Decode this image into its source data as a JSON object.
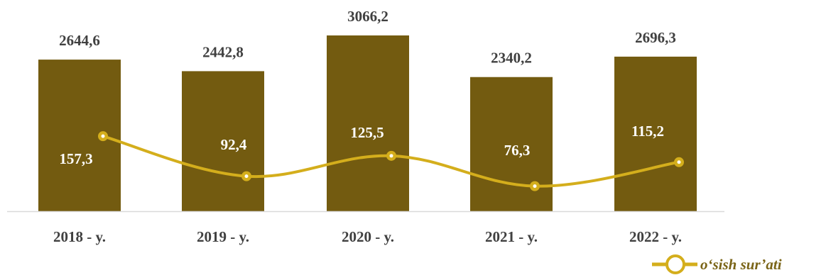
{
  "colors": {
    "bar": "#735b10",
    "line": "#d4ae1c",
    "axis": "#d9d9d9",
    "legend_text": "#7a6417"
  },
  "chart_data": {
    "type": "bar",
    "categories": [
      "2018 - y.",
      "2019 - y.",
      "2020 - y.",
      "2021 - y.",
      "2022 - y."
    ],
    "series": [
      {
        "values": [
          2644.6,
          2442.8,
          3066.2,
          2340.2,
          2696.3
        ],
        "labels": [
          "2644,6",
          "2442,8",
          "3066,2",
          "2340,2",
          "2696,3"
        ]
      },
      {
        "name": "o‘sish sur’ati",
        "type": "line",
        "values": [
          157.3,
          92.4,
          125.5,
          76.3,
          115.2
        ],
        "labels": [
          "157,3",
          "92,4",
          "125,5",
          "76,3",
          "115,2"
        ]
      }
    ],
    "legend": {
      "position": "bottom-right"
    },
    "grid": false
  }
}
